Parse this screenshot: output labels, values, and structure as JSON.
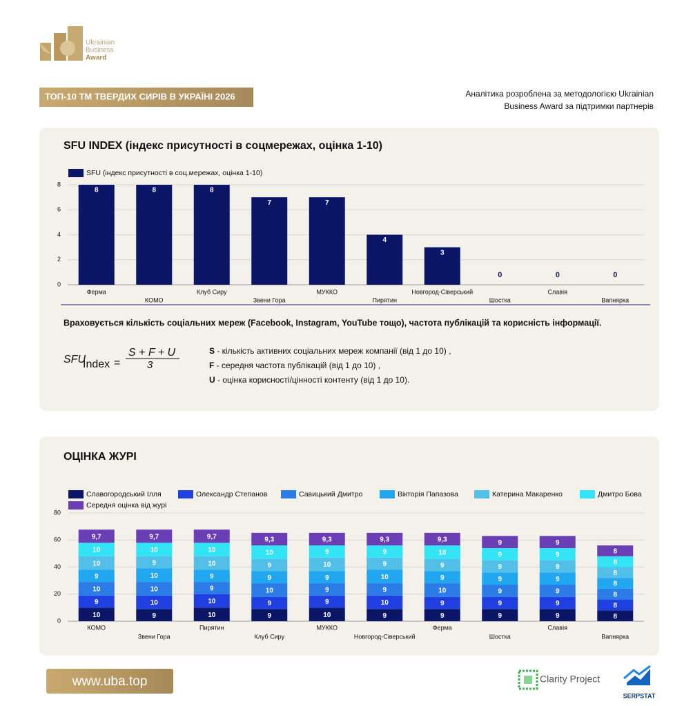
{
  "header": {
    "logo": [
      "Ukrainian",
      "Business",
      "Award"
    ],
    "badge": "ТОП-10 ТМ ТВЕРДИХ СИРІВ В УКРАЇНІ 2026",
    "note": [
      "Аналітика розроблена за методологією Ukrainian",
      "Business Award за підтримки партнерів"
    ]
  },
  "chart_data": [
    {
      "type": "bar",
      "title": "SFU INDEX (індекс присутності в соцмережах, оцінка 1-10)",
      "categories": [
        "Ферма",
        "КОМО",
        "Клуб Сиру",
        "Звени Гора",
        "МУККО",
        "Пирятин",
        "Новгород-Сіверський",
        "Шостка",
        "Славія",
        "Вапнярка"
      ],
      "series": [
        {
          "name": "SFU (індекс присутності в соц.мережах, оцінка 1-10)",
          "color": "#0b1766",
          "values": [
            8,
            8,
            8,
            7,
            7,
            4,
            3,
            0,
            0,
            0
          ]
        }
      ],
      "ylim": [
        0,
        8
      ],
      "yticks": [
        0,
        2,
        4,
        6,
        8
      ],
      "grid": true
    },
    {
      "type": "bar",
      "stacked": true,
      "title": "ОЦІНКА ЖУРІ",
      "categories": [
        "КОМО",
        "Звени Гора",
        "Пирятин",
        "Клуб Сиру",
        "МУККО",
        "Новгород-Сіверський",
        "Ферма",
        "Шостка",
        "Славія",
        "Вапнярка"
      ],
      "series": [
        {
          "name": "Славогородський Ілля",
          "color": "#0b1766",
          "values": [
            10,
            9,
            10,
            9,
            10,
            9,
            9,
            9,
            9,
            8
          ]
        },
        {
          "name": "Олександр Степанов",
          "color": "#1f3fe0",
          "values": [
            9,
            10,
            10,
            9,
            9,
            10,
            9,
            9,
            9,
            8
          ]
        },
        {
          "name": "Савицький Дмитро",
          "color": "#2b7ce6",
          "values": [
            10,
            10,
            9,
            10,
            9,
            9,
            10,
            9,
            9,
            8
          ]
        },
        {
          "name": "Вікторія Папазова",
          "color": "#21a6f0",
          "values": [
            9,
            10,
            9,
            9,
            9,
            10,
            9,
            9,
            9,
            8
          ]
        },
        {
          "name": "Катерина Макаренко",
          "color": "#52bfe8",
          "values": [
            10,
            9,
            10,
            9,
            10,
            9,
            9,
            9,
            9,
            8
          ]
        },
        {
          "name": "Дмитро Бова",
          "color": "#33e4f4",
          "values": [
            10,
            10,
            10,
            10,
            9,
            9,
            10,
            9,
            9,
            8
          ]
        },
        {
          "name": "Середня оцінка від журі",
          "color": "#6a3fb5",
          "values": [
            9.7,
            9.7,
            9.7,
            9.3,
            9.3,
            9.3,
            9.3,
            9,
            9,
            8
          ],
          "value_labels": [
            "9,7",
            "9,7",
            "9,7",
            "9,3",
            "9,3",
            "9,3",
            "9,3",
            "9",
            "9",
            "8"
          ]
        }
      ],
      "ylim": [
        0,
        80
      ],
      "yticks": [
        0,
        20,
        40,
        60,
        80
      ],
      "grid": true
    }
  ],
  "sfu_note": "Враховується кількість соціальних мереж (Facebook, Instagram, YouTube тощо), частота публікацій та корисність інформації.",
  "formula": {
    "lhs": "SFU",
    "subscript": "Index",
    "eq": "=",
    "numerator": "S + F + U",
    "denominator": "3"
  },
  "definitions": [
    {
      "key": "S",
      "text": " - кількість активних соціальних мереж компанії (від 1 до 10) ,"
    },
    {
      "key": "F",
      "text": " - середня частота публікацій (від 1 до 10) ,"
    },
    {
      "key": "U",
      "text": " - оцінка корисності/цінності контенту (від 1 до 10)."
    }
  ],
  "footer": {
    "url": "www.uba.top",
    "partners": [
      "Clarity Project",
      "SERPSTAT"
    ]
  }
}
